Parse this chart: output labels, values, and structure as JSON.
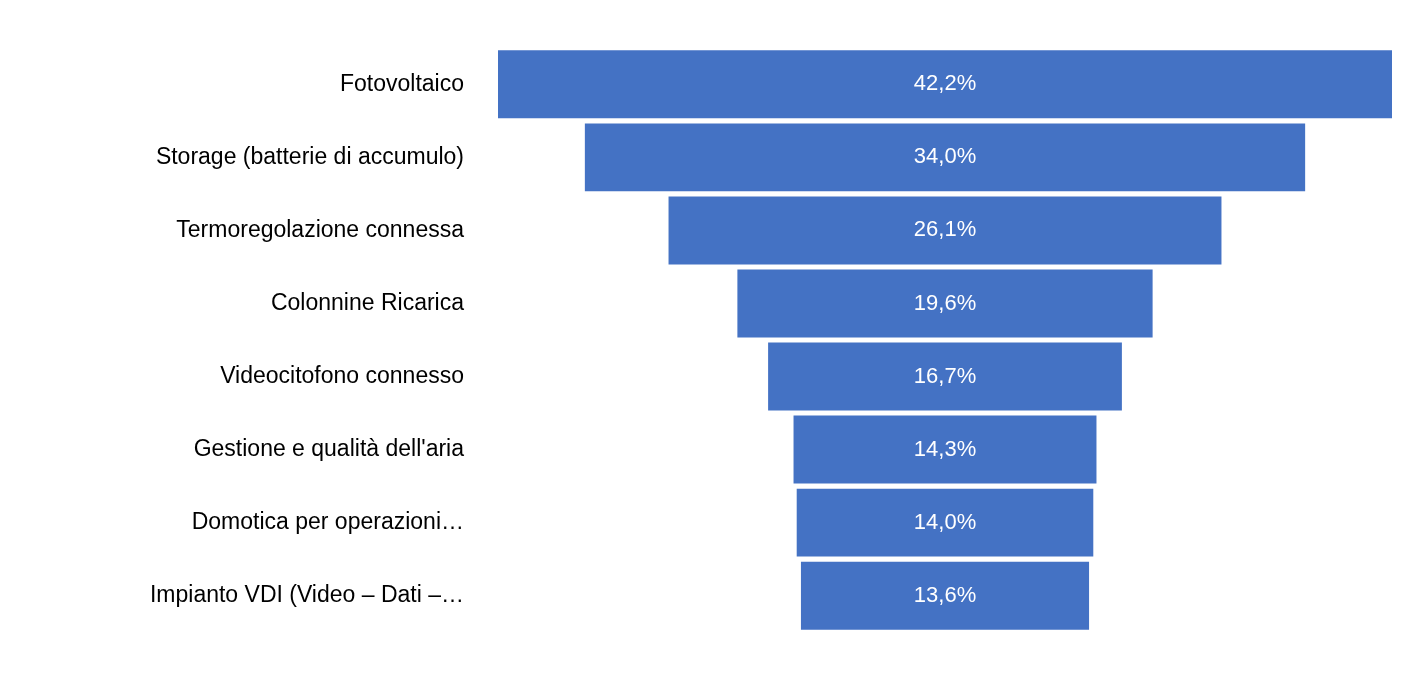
{
  "chart_data": {
    "type": "other",
    "categories": [
      "Fotovoltaico",
      "Storage (batterie di accumulo)",
      "Termoregolazione connessa",
      "Colonnine Ricarica",
      "Videocitofono connesso",
      "Gestione e qualità dell'aria",
      "Domotica per operazioni…",
      "Impianto VDI (Video – Dati –…"
    ],
    "values": [
      42.2,
      34.0,
      26.1,
      19.6,
      16.7,
      14.3,
      14.0,
      13.6
    ],
    "value_labels": [
      "42,2%",
      "34,0%",
      "26,1%",
      "19,6%",
      "16,7%",
      "14,3%",
      "14,0%",
      "13,6%"
    ],
    "color": "#4472c4"
  }
}
